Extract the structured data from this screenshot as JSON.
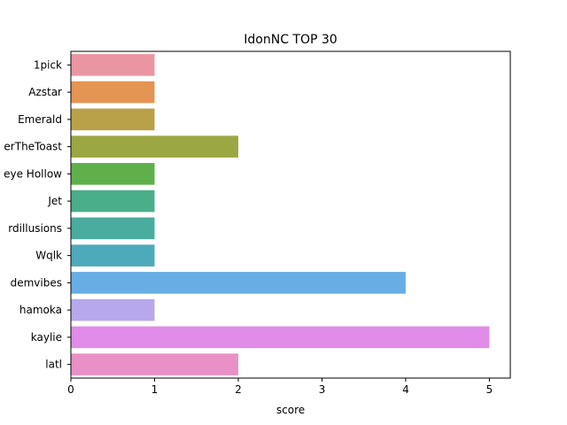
{
  "chart_data": {
    "type": "bar",
    "orientation": "horizontal",
    "title": "IdonNC TOP 30",
    "xlabel": "score",
    "ylabel": "",
    "xlim": [
      0,
      5.25
    ],
    "xticks": [
      0,
      1,
      2,
      3,
      4,
      5
    ],
    "grid": false,
    "categories": [
      "1pick",
      "Azstar",
      "Emerald",
      "erTheToast",
      "eye Hollow",
      "Jet",
      "rdillusions",
      "Wqlk",
      "demvibes",
      "hamoka",
      "kaylie",
      "latl"
    ],
    "values": [
      1,
      1,
      1,
      2,
      1,
      1,
      1,
      1,
      4,
      1,
      5,
      2
    ],
    "colors": [
      "#ea96a2",
      "#e49453",
      "#b9a14a",
      "#9ba743",
      "#5fb04b",
      "#49ae89",
      "#4aab9f",
      "#4daaba",
      "#68aee4",
      "#b6a8eb",
      "#e08ce8",
      "#e990c6"
    ]
  }
}
